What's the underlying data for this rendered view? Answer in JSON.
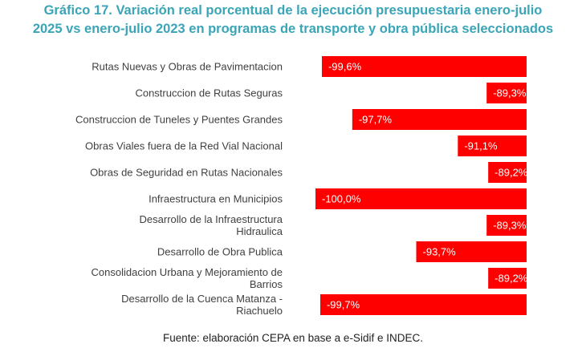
{
  "title_lines": [
    "Gráfico 17. Variación real porcentual de la ejecución presupuestaria enero-julio",
    "2025 vs enero-julio 2023 en programas de transporte y obra pública seleccionados"
  ],
  "source": "Fuente: elaboración CEPA en base a e-Sidif e INDEC.",
  "colors": {
    "bar": "#ff0000",
    "bar_label": "#ffffff",
    "title": "#3aa5b7",
    "category_text": "#404040"
  },
  "chart_data": {
    "type": "bar",
    "orientation": "horizontal",
    "categories": [
      "Rutas Nuevas y Obras de Pavimentacion",
      "Construccion de Rutas Seguras",
      "Construccion de Tuneles y Puentes Grandes",
      "Obras Viales fuera de la Red Vial Nacional",
      "Obras de Seguridad en Rutas Nacionales",
      "Infraestructura en Municipios",
      "Desarrollo de la Infraestructura Hidraulica",
      "Desarrollo de Obra Publica",
      "Consolidacion Urbana y Mejoramiento de Barrios",
      "Desarrollo de la Cuenca Matanza - Riachuelo"
    ],
    "values": [
      -99.6,
      -89.3,
      -97.7,
      -91.1,
      -89.2,
      -100.0,
      -89.3,
      -93.7,
      -89.2,
      -99.7
    ],
    "data_labels": [
      "-99,6%",
      "-89,3%",
      "-97,7%",
      "-91,1%",
      "-89,2%",
      "-100,0%",
      "-89,3%",
      "-93,7%",
      "-89,2%",
      "-99,7%"
    ],
    "xlim": [
      -100,
      -86.8
    ]
  }
}
